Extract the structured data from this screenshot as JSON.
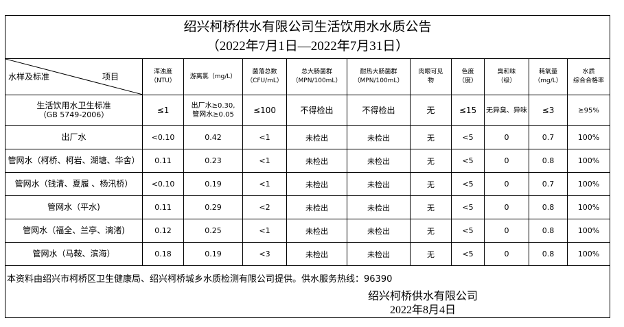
{
  "title": "绍兴柯桥供水有限公司生活饮用水水质公告",
  "period": "（2022年7月1日—2022年7月31日）",
  "header": {
    "corner_left": "水样及标准",
    "corner_right": "项目",
    "columns": [
      {
        "name": "浑浊度",
        "unit": "（NTU）"
      },
      {
        "name": "游离氯（mg/L）",
        "unit": ""
      },
      {
        "name": "菌落总数",
        "unit": "（CFU/mL）"
      },
      {
        "name": "总大肠菌群",
        "unit": "（MPN/100mL）"
      },
      {
        "name": "耐热大肠菌群",
        "unit": "（MPN/100mL）"
      },
      {
        "name": "肉眼可见",
        "unit": "物"
      },
      {
        "name": "色度",
        "unit": "（度）"
      },
      {
        "name": "臭和味",
        "unit": "（级）"
      },
      {
        "name": "耗氧量",
        "unit": "（mg/L）"
      },
      {
        "name": "水质",
        "unit": "综合合格率"
      }
    ]
  },
  "standard": {
    "name": "生活饮用水卫生标准",
    "code": "（GB 5749-2006）",
    "values": [
      "≤1",
      "出厂水≥0.30,",
      "管网水≥0.05",
      "≤100",
      "不得检出",
      "不得检出",
      "无",
      "≤15",
      "无异臭、异味",
      "≤3",
      "≥95%"
    ]
  },
  "rows": [
    {
      "name": "出厂水",
      "values": [
        "<0.10",
        "0.42",
        "<1",
        "未检出",
        "未检出",
        "无",
        "<5",
        "0",
        "0.7",
        "100%"
      ]
    },
    {
      "name": "管网水（柯桥、柯岩、湖塘、华舍）",
      "values": [
        "0.11",
        "0.23",
        "<1",
        "未检出",
        "未检出",
        "无",
        "<5",
        "0",
        "0.8",
        "100%"
      ]
    },
    {
      "name": "管网水（钱清、夏履 、杨汛桥）",
      "values": [
        "<0.10",
        "0.19",
        "<1",
        "未检出",
        "未检出",
        "无",
        "<5",
        "0",
        "0.7",
        "100%"
      ]
    },
    {
      "name": "管网水（平水)",
      "values": [
        "0.11",
        "0.29",
        "<2",
        "未检出",
        "未检出",
        "无",
        "<5",
        "0",
        "0.8",
        "100%"
      ]
    },
    {
      "name": "管网水（福全、兰亭、漓渚)",
      "values": [
        "0.12",
        "0.25",
        "<1",
        "未检出",
        "未检出",
        "无",
        "<5",
        "0",
        "0.8",
        "100%"
      ]
    },
    {
      "name": "管网水（马鞍、滨海）",
      "values": [
        "0.18",
        "0.19",
        "<3",
        "未检出",
        "未检出",
        "无",
        "<5",
        "0",
        "0.8",
        "100%"
      ]
    }
  ],
  "footer": {
    "note": "本资料由绍兴市柯桥区卫生健康局、绍兴柯桥城乡水质检测有限公司提供。供水服务热线：96390",
    "company": "绍兴柯桥供水有限公司",
    "date": "2022年8月4日"
  }
}
